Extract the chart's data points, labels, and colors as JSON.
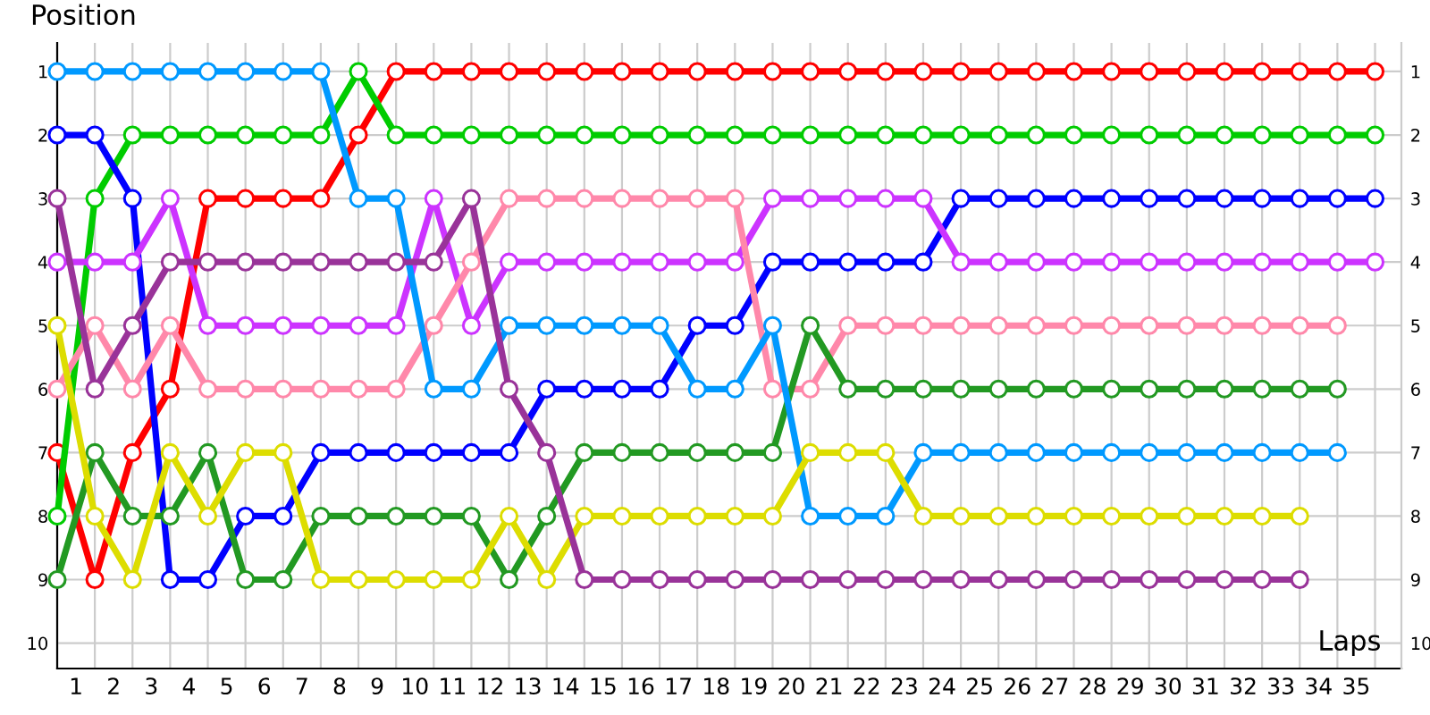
{
  "chart_data": {
    "type": "line",
    "xlabel": "Laps",
    "ylabel": "Position",
    "x": [
      0,
      1,
      2,
      3,
      4,
      5,
      6,
      7,
      8,
      9,
      10,
      11,
      12,
      13,
      14,
      15,
      16,
      17,
      18,
      19,
      20,
      21,
      22,
      23,
      24,
      25,
      26,
      27,
      28,
      29,
      30,
      31,
      32,
      33,
      34,
      35
    ],
    "series": [
      {
        "color": "#ff0000",
        "values": [
          7,
          9,
          7,
          6,
          3,
          3,
          3,
          3,
          2,
          1,
          1,
          1,
          1,
          1,
          1,
          1,
          1,
          1,
          1,
          1,
          1,
          1,
          1,
          1,
          1,
          1,
          1,
          1,
          1,
          1,
          1,
          1,
          1,
          1,
          1,
          1
        ]
      },
      {
        "color": "#00cc00",
        "values": [
          8,
          3,
          2,
          2,
          2,
          2,
          2,
          2,
          1,
          2,
          2,
          2,
          2,
          2,
          2,
          2,
          2,
          2,
          2,
          2,
          2,
          2,
          2,
          2,
          2,
          2,
          2,
          2,
          2,
          2,
          2,
          2,
          2,
          2,
          2,
          2
        ]
      },
      {
        "color": "#0000ff",
        "values": [
          2,
          2,
          3,
          9,
          9,
          8,
          8,
          7,
          7,
          7,
          7,
          7,
          7,
          6,
          6,
          6,
          6,
          5,
          5,
          4,
          4,
          4,
          4,
          4,
          3,
          3,
          3,
          3,
          3,
          3,
          3,
          3,
          3,
          3,
          3,
          3
        ]
      },
      {
        "color": "#cc33ff",
        "values": [
          4,
          4,
          4,
          3,
          5,
          5,
          5,
          5,
          5,
          5,
          3,
          5,
          4,
          4,
          4,
          4,
          4,
          4,
          4,
          3,
          3,
          3,
          3,
          3,
          4,
          4,
          4,
          4,
          4,
          4,
          4,
          4,
          4,
          4,
          4,
          4
        ]
      },
      {
        "color": "#ff88aa",
        "values": [
          6,
          5,
          6,
          5,
          6,
          6,
          6,
          6,
          6,
          6,
          5,
          4,
          3,
          3,
          3,
          3,
          3,
          3,
          3,
          6,
          6,
          5,
          5,
          5,
          5,
          5,
          5,
          5,
          5,
          5,
          5,
          5,
          5,
          5,
          5,
          null
        ]
      },
      {
        "color": "#229922",
        "values": [
          9,
          7,
          8,
          8,
          7,
          9,
          9,
          8,
          8,
          8,
          8,
          8,
          9,
          8,
          7,
          7,
          7,
          7,
          7,
          7,
          5,
          6,
          6,
          6,
          6,
          6,
          6,
          6,
          6,
          6,
          6,
          6,
          6,
          6,
          6,
          null
        ]
      },
      {
        "color": "#0099ff",
        "values": [
          1,
          1,
          1,
          1,
          1,
          1,
          1,
          1,
          3,
          3,
          6,
          6,
          5,
          5,
          5,
          5,
          5,
          6,
          6,
          5,
          8,
          8,
          8,
          7,
          7,
          7,
          7,
          7,
          7,
          7,
          7,
          7,
          7,
          7,
          7,
          null
        ]
      },
      {
        "color": "#dddd00",
        "values": [
          5,
          8,
          9,
          7,
          8,
          7,
          7,
          9,
          9,
          9,
          9,
          9,
          8,
          9,
          8,
          8,
          8,
          8,
          8,
          8,
          7,
          7,
          7,
          8,
          8,
          8,
          8,
          8,
          8,
          8,
          8,
          8,
          8,
          8,
          null,
          null
        ]
      },
      {
        "color": "#993399",
        "values": [
          3,
          6,
          5,
          4,
          4,
          4,
          4,
          4,
          4,
          4,
          4,
          3,
          6,
          7,
          9,
          9,
          9,
          9,
          9,
          9,
          9,
          9,
          9,
          9,
          9,
          9,
          9,
          9,
          9,
          9,
          9,
          9,
          9,
          9,
          null,
          null
        ]
      }
    ],
    "marker": "circle",
    "line_style": "solid",
    "grid": true,
    "xlim": [
      0,
      35.7
    ],
    "ylim": [
      10.4,
      0.55
    ],
    "y2lim": [
      10.4,
      0.55
    ],
    "xticks": [
      {
        "value": 0,
        "label": null
      },
      {
        "value": 0.5,
        "label": "1"
      },
      {
        "value": 1,
        "label": null
      },
      {
        "value": 1.5,
        "label": "2"
      },
      {
        "value": 2,
        "label": null
      },
      {
        "value": 2.5,
        "label": "3"
      },
      {
        "value": 3,
        "label": null
      },
      {
        "value": 3.5,
        "label": "4"
      },
      {
        "value": 4,
        "label": null
      },
      {
        "value": 4.5,
        "label": "5"
      },
      {
        "value": 5,
        "label": null
      },
      {
        "value": 5.5,
        "label": "6"
      },
      {
        "value": 6,
        "label": null
      },
      {
        "value": 6.5,
        "label": "7"
      },
      {
        "value": 7,
        "label": null
      },
      {
        "value": 7.5,
        "label": "8"
      },
      {
        "value": 8,
        "label": null
      },
      {
        "value": 8.5,
        "label": "9"
      },
      {
        "value": 9,
        "label": null
      },
      {
        "value": 9.5,
        "label": "10"
      },
      {
        "value": 10,
        "label": null
      },
      {
        "value": 10.5,
        "label": "11"
      },
      {
        "value": 11,
        "label": null
      },
      {
        "value": 11.5,
        "label": "12"
      },
      {
        "value": 12,
        "label": null
      },
      {
        "value": 12.5,
        "label": "13"
      },
      {
        "value": 13,
        "label": null
      },
      {
        "value": 13.5,
        "label": "14"
      },
      {
        "value": 14,
        "label": null
      },
      {
        "value": 14.5,
        "label": "15"
      },
      {
        "value": 15,
        "label": null
      },
      {
        "value": 15.5,
        "label": "16"
      },
      {
        "value": 16,
        "label": null
      },
      {
        "value": 16.5,
        "label": "17"
      },
      {
        "value": 17,
        "label": null
      },
      {
        "value": 17.5,
        "label": "18"
      },
      {
        "value": 18,
        "label": null
      },
      {
        "value": 18.5,
        "label": "19"
      },
      {
        "value": 19,
        "label": null
      },
      {
        "value": 19.5,
        "label": "20"
      },
      {
        "value": 20,
        "label": null
      },
      {
        "value": 20.5,
        "label": "21"
      },
      {
        "value": 21,
        "label": null
      },
      {
        "value": 21.5,
        "label": "22"
      },
      {
        "value": 22,
        "label": null
      },
      {
        "value": 22.5,
        "label": "23"
      },
      {
        "value": 23,
        "label": null
      },
      {
        "value": 23.5,
        "label": "24"
      },
      {
        "value": 24,
        "label": null
      },
      {
        "value": 24.5,
        "label": "25"
      },
      {
        "value": 25,
        "label": null
      },
      {
        "value": 25.5,
        "label": "26"
      },
      {
        "value": 26,
        "label": null
      },
      {
        "value": 26.5,
        "label": "27"
      },
      {
        "value": 27,
        "label": null
      },
      {
        "value": 27.5,
        "label": "28"
      },
      {
        "value": 28,
        "label": null
      },
      {
        "value": 28.5,
        "label": "29"
      },
      {
        "value": 29,
        "label": null
      },
      {
        "value": 29.5,
        "label": "30"
      },
      {
        "value": 30,
        "label": null
      },
      {
        "value": 30.5,
        "label": "31"
      },
      {
        "value": 31,
        "label": null
      },
      {
        "value": 31.5,
        "label": "32"
      },
      {
        "value": 32,
        "label": null
      },
      {
        "value": 32.5,
        "label": "33"
      },
      {
        "value": 33,
        "label": null
      },
      {
        "value": 33.5,
        "label": "34"
      },
      {
        "value": 34,
        "label": null
      },
      {
        "value": 34.5,
        "label": "35"
      },
      {
        "value": 35,
        "label": null
      }
    ],
    "yticks": [
      1,
      2,
      3,
      4,
      5,
      6,
      7,
      8,
      9,
      10
    ],
    "y2ticks": [
      1,
      2,
      3,
      4,
      5,
      6,
      7,
      8,
      9,
      10
    ]
  }
}
